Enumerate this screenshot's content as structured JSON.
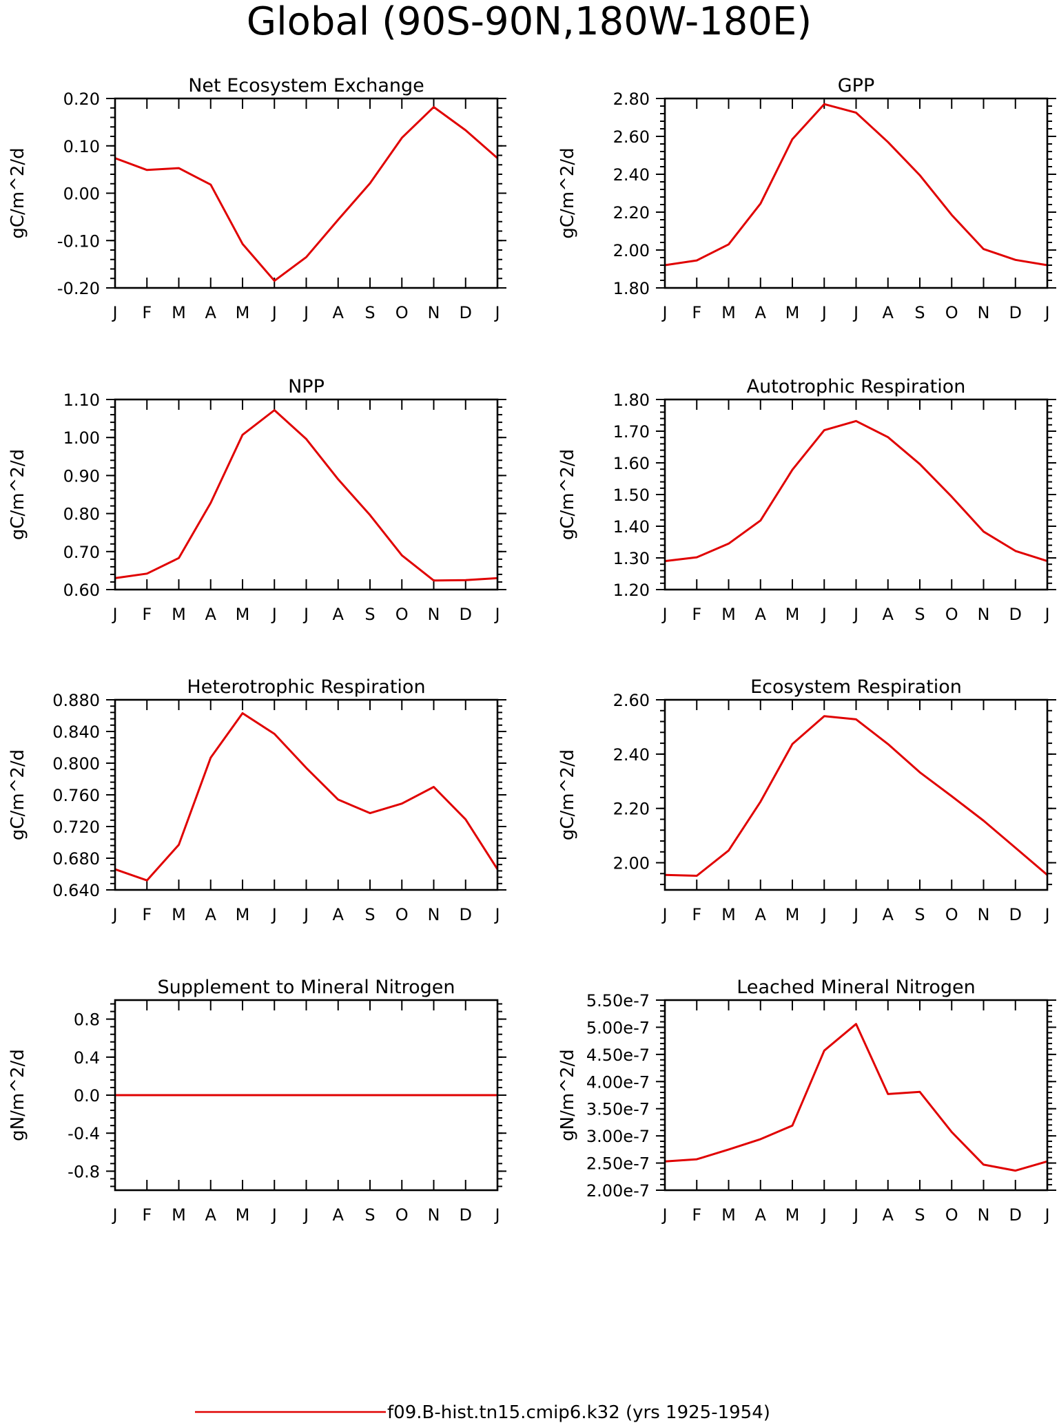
{
  "main_title": "Global (90S-90N,180W-180E)",
  "legend": {
    "label": "f09.B-hist.tn15.cmip6.k32 (yrs 1925-1954)",
    "color": "#e00000"
  },
  "chart_data": [
    {
      "type": "line",
      "title": "Net Ecosystem Exchange",
      "ylabel": "gC/m^2/d",
      "categories": [
        "J",
        "F",
        "M",
        "A",
        "M",
        "J",
        "J",
        "A",
        "S",
        "O",
        "N",
        "D",
        "J"
      ],
      "ylim": [
        -0.2,
        0.2
      ],
      "yticks": [
        -0.2,
        -0.1,
        0.0,
        0.1,
        0.2
      ],
      "yticklabels": [
        "-0.20",
        "-0.10",
        "0.00",
        "0.10",
        "0.20"
      ],
      "series": [
        {
          "values": [
            0.074,
            0.049,
            0.053,
            0.018,
            -0.107,
            -0.185,
            -0.135,
            -0.056,
            0.021,
            0.117,
            0.182,
            0.133,
            0.074
          ]
        }
      ]
    },
    {
      "type": "line",
      "title": "GPP",
      "ylabel": "gC/m^2/d",
      "categories": [
        "J",
        "F",
        "M",
        "A",
        "M",
        "J",
        "J",
        "A",
        "S",
        "O",
        "N",
        "D",
        "J"
      ],
      "ylim": [
        1.8,
        2.8
      ],
      "yticks": [
        1.8,
        2.0,
        2.2,
        2.4,
        2.6,
        2.8
      ],
      "yticklabels": [
        "1.80",
        "2.00",
        "2.20",
        "2.40",
        "2.60",
        "2.80"
      ],
      "series": [
        {
          "values": [
            1.92,
            1.945,
            2.03,
            2.245,
            2.585,
            2.77,
            2.725,
            2.57,
            2.395,
            2.185,
            2.005,
            1.948,
            1.92
          ]
        }
      ]
    },
    {
      "type": "line",
      "title": "NPP",
      "ylabel": "gC/m^2/d",
      "categories": [
        "J",
        "F",
        "M",
        "A",
        "M",
        "J",
        "J",
        "A",
        "S",
        "O",
        "N",
        "D",
        "J"
      ],
      "ylim": [
        0.6,
        1.1
      ],
      "yticks": [
        0.6,
        0.7,
        0.8,
        0.9,
        1.0,
        1.1
      ],
      "yticklabels": [
        "0.60",
        "0.70",
        "0.80",
        "0.90",
        "1.00",
        "1.10"
      ],
      "series": [
        {
          "values": [
            0.63,
            0.642,
            0.683,
            0.828,
            1.007,
            1.072,
            0.996,
            0.89,
            0.796,
            0.69,
            0.624,
            0.625,
            0.63
          ]
        }
      ]
    },
    {
      "type": "line",
      "title": "Autotrophic Respiration",
      "ylabel": "gC/m^2/d",
      "categories": [
        "J",
        "F",
        "M",
        "A",
        "M",
        "J",
        "J",
        "A",
        "S",
        "O",
        "N",
        "D",
        "J"
      ],
      "ylim": [
        1.2,
        1.8
      ],
      "yticks": [
        1.2,
        1.3,
        1.4,
        1.5,
        1.6,
        1.7,
        1.8
      ],
      "yticklabels": [
        "1.20",
        "1.30",
        "1.40",
        "1.50",
        "1.60",
        "1.70",
        "1.80"
      ],
      "series": [
        {
          "values": [
            1.29,
            1.302,
            1.345,
            1.418,
            1.578,
            1.703,
            1.732,
            1.681,
            1.596,
            1.493,
            1.383,
            1.322,
            1.29
          ]
        }
      ]
    },
    {
      "type": "line",
      "title": "Heterotrophic Respiration",
      "ylabel": "gC/m^2/d",
      "categories": [
        "J",
        "F",
        "M",
        "A",
        "M",
        "J",
        "J",
        "A",
        "S",
        "O",
        "N",
        "D",
        "J"
      ],
      "ylim": [
        0.64,
        0.88
      ],
      "yticks": [
        0.64,
        0.68,
        0.72,
        0.76,
        0.8,
        0.84,
        0.88
      ],
      "yticklabels": [
        "0.640",
        "0.680",
        "0.720",
        "0.760",
        "0.800",
        "0.840",
        "0.880"
      ],
      "series": [
        {
          "values": [
            0.666,
            0.652,
            0.697,
            0.807,
            0.863,
            0.837,
            0.794,
            0.754,
            0.737,
            0.749,
            0.77,
            0.729,
            0.666
          ]
        }
      ]
    },
    {
      "type": "line",
      "title": "Ecosystem Respiration",
      "ylabel": "gC/m^2/d",
      "categories": [
        "J",
        "F",
        "M",
        "A",
        "M",
        "J",
        "J",
        "A",
        "S",
        "O",
        "N",
        "D",
        "J"
      ],
      "ylim": [
        1.9,
        2.6
      ],
      "yticks": [
        2.0,
        2.2,
        2.4,
        2.6
      ],
      "yticklabels": [
        "2.00",
        "2.20",
        "2.40",
        "2.60"
      ],
      "series": [
        {
          "values": [
            1.955,
            1.952,
            2.045,
            2.225,
            2.437,
            2.54,
            2.528,
            2.437,
            2.333,
            2.245,
            2.155,
            2.055,
            1.955
          ]
        }
      ]
    },
    {
      "type": "line",
      "title": "Supplement to Mineral Nitrogen",
      "ylabel": "gN/m^2/d",
      "categories": [
        "J",
        "F",
        "M",
        "A",
        "M",
        "J",
        "J",
        "A",
        "S",
        "O",
        "N",
        "D",
        "J"
      ],
      "ylim": [
        -1.0,
        1.0
      ],
      "yticks": [
        -0.8,
        -0.4,
        0.0,
        0.4,
        0.8
      ],
      "yticklabels": [
        "-0.8",
        "-0.4",
        "0.0",
        "0.4",
        "0.8"
      ],
      "series": [
        {
          "values": [
            0,
            0,
            0,
            0,
            0,
            0,
            0,
            0,
            0,
            0,
            0,
            0,
            0
          ]
        }
      ]
    },
    {
      "type": "line",
      "title": "Leached Mineral Nitrogen",
      "ylabel": "gN/m^2/d",
      "categories": [
        "J",
        "F",
        "M",
        "A",
        "M",
        "J",
        "J",
        "A",
        "S",
        "O",
        "N",
        "D",
        "J"
      ],
      "ylim": [
        2e-07,
        5.5e-07
      ],
      "yticks": [
        2e-07,
        2.5e-07,
        3e-07,
        3.5e-07,
        4e-07,
        4.5e-07,
        5e-07,
        5.5e-07
      ],
      "yticklabels": [
        "2.00e-7",
        "2.50e-7",
        "3.00e-7",
        "3.50e-7",
        "4.00e-7",
        "4.50e-7",
        "5.00e-7",
        "5.50e-7"
      ],
      "series": [
        {
          "values": [
            2.53e-07,
            2.57e-07,
            2.75e-07,
            2.94e-07,
            3.19e-07,
            4.57e-07,
            5.06e-07,
            3.77e-07,
            3.81e-07,
            3.07e-07,
            2.47e-07,
            2.36e-07,
            2.53e-07
          ]
        }
      ]
    }
  ]
}
